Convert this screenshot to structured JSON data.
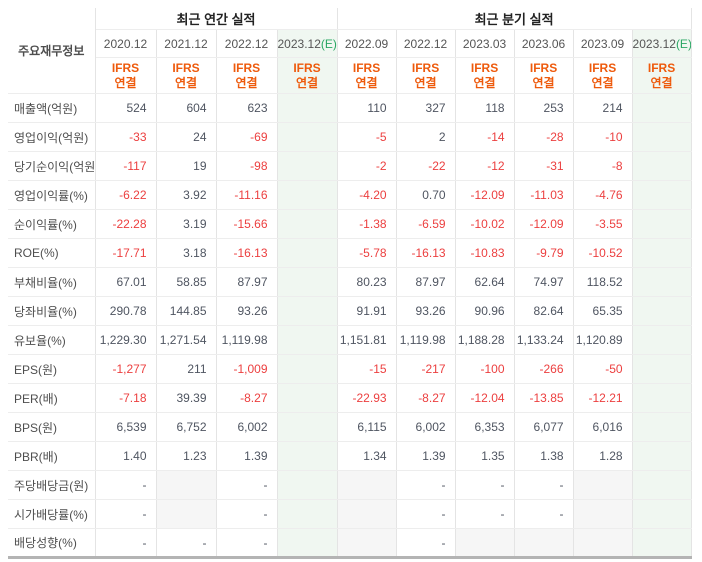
{
  "colors": {
    "negative_value": "#ec3f3f",
    "positive_value": "#4f5561",
    "ifrs_orange": "#ee5a0c",
    "estimate_green": "#2aa764",
    "estimate_column_bg": "#f0f7f1",
    "empty_cell_bg": "#f6f6f6"
  },
  "table": {
    "corner_label": "주요재무정보",
    "section_headers": [
      {
        "label": "최근 연간 실적",
        "span": 4
      },
      {
        "label": "최근 분기 실적",
        "span": 6
      }
    ],
    "columns": [
      {
        "period": "2020.12",
        "suffix": "",
        "standard": "IFRS",
        "scope": "연결",
        "estimate": false,
        "section": "annual"
      },
      {
        "period": "2021.12",
        "suffix": "",
        "standard": "IFRS",
        "scope": "연결",
        "estimate": false,
        "section": "annual"
      },
      {
        "period": "2022.12",
        "suffix": "",
        "standard": "IFRS",
        "scope": "연결",
        "estimate": false,
        "section": "annual"
      },
      {
        "period": "2023.12",
        "suffix": "(E)",
        "standard": "IFRS",
        "scope": "연결",
        "estimate": true,
        "section": "annual"
      },
      {
        "period": "2022.09",
        "suffix": "",
        "standard": "IFRS",
        "scope": "연결",
        "estimate": false,
        "section": "quarterly"
      },
      {
        "period": "2022.12",
        "suffix": "",
        "standard": "IFRS",
        "scope": "연결",
        "estimate": false,
        "section": "quarterly"
      },
      {
        "period": "2023.03",
        "suffix": "",
        "standard": "IFRS",
        "scope": "연결",
        "estimate": false,
        "section": "quarterly"
      },
      {
        "period": "2023.06",
        "suffix": "",
        "standard": "IFRS",
        "scope": "연결",
        "estimate": false,
        "section": "quarterly"
      },
      {
        "period": "2023.09",
        "suffix": "",
        "standard": "IFRS",
        "scope": "연결",
        "estimate": false,
        "section": "quarterly"
      },
      {
        "period": "2023.12",
        "suffix": "(E)",
        "standard": "IFRS",
        "scope": "연결",
        "estimate": true,
        "section": "quarterly"
      }
    ],
    "rows": [
      {
        "label": "매출액(억원)",
        "values": [
          "524",
          "604",
          "623",
          "",
          "110",
          "327",
          "118",
          "253",
          "214",
          ""
        ]
      },
      {
        "label": "영업이익(억원)",
        "values": [
          "-33",
          "24",
          "-69",
          "",
          "-5",
          "2",
          "-14",
          "-28",
          "-10",
          ""
        ]
      },
      {
        "label": "당기순이익(억원)",
        "values": [
          "-117",
          "19",
          "-98",
          "",
          "-2",
          "-22",
          "-12",
          "-31",
          "-8",
          ""
        ]
      },
      {
        "label": "영업이익률(%)",
        "values": [
          "-6.22",
          "3.92",
          "-11.16",
          "",
          "-4.20",
          "0.70",
          "-12.09",
          "-11.03",
          "-4.76",
          ""
        ]
      },
      {
        "label": "순이익률(%)",
        "values": [
          "-22.28",
          "3.19",
          "-15.66",
          "",
          "-1.38",
          "-6.59",
          "-10.02",
          "-12.09",
          "-3.55",
          ""
        ]
      },
      {
        "label": "ROE(%)",
        "values": [
          "-17.71",
          "3.18",
          "-16.13",
          "",
          "-5.78",
          "-16.13",
          "-10.83",
          "-9.79",
          "-10.52",
          ""
        ]
      },
      {
        "label": "부채비율(%)",
        "values": [
          "67.01",
          "58.85",
          "87.97",
          "",
          "80.23",
          "87.97",
          "62.64",
          "74.97",
          "118.52",
          ""
        ]
      },
      {
        "label": "당좌비율(%)",
        "values": [
          "290.78",
          "144.85",
          "93.26",
          "",
          "91.91",
          "93.26",
          "90.96",
          "82.64",
          "65.35",
          ""
        ]
      },
      {
        "label": "유보율(%)",
        "values": [
          "1,229.30",
          "1,271.54",
          "1,119.98",
          "",
          "1,151.81",
          "1,119.98",
          "1,188.28",
          "1,133.24",
          "1,120.89",
          ""
        ]
      },
      {
        "label": "EPS(원)",
        "values": [
          "-1,277",
          "211",
          "-1,009",
          "",
          "-15",
          "-217",
          "-100",
          "-266",
          "-50",
          ""
        ]
      },
      {
        "label": "PER(배)",
        "values": [
          "-7.18",
          "39.39",
          "-8.27",
          "",
          "-22.93",
          "-8.27",
          "-12.04",
          "-13.85",
          "-12.21",
          ""
        ]
      },
      {
        "label": "BPS(원)",
        "values": [
          "6,539",
          "6,752",
          "6,002",
          "",
          "6,115",
          "6,002",
          "6,353",
          "6,077",
          "6,016",
          ""
        ]
      },
      {
        "label": "PBR(배)",
        "values": [
          "1.40",
          "1.23",
          "1.39",
          "",
          "1.34",
          "1.39",
          "1.35",
          "1.38",
          "1.28",
          ""
        ]
      },
      {
        "label": "주당배당금(원)",
        "values": [
          "-",
          null,
          "-",
          "",
          null,
          "-",
          "-",
          "-",
          null,
          ""
        ]
      },
      {
        "label": "시가배당률(%)",
        "values": [
          "-",
          null,
          "-",
          "",
          null,
          "-",
          "-",
          "-",
          null,
          ""
        ]
      },
      {
        "label": "배당성향(%)",
        "values": [
          "-",
          "-",
          "-",
          "",
          null,
          "-",
          null,
          null,
          null,
          ""
        ]
      }
    ]
  }
}
